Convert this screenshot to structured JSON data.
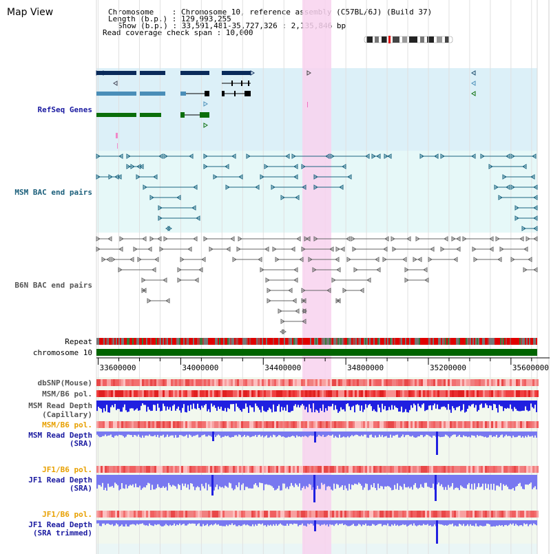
{
  "page": {
    "title": "Map View"
  },
  "info": {
    "chromosome": "Chromosome    : Chromosome 10, reference assembly (C57BL/6J) (Build 37)",
    "length": "Length (b.p.) : 129,993,255",
    "show": "Show (b.p.) : 33,591,481-35,727,326 : 2,135,846 bp",
    "coverage": "Read coverage check span : 10,000"
  },
  "tracks": {
    "refseq": "RefSeq Genes",
    "msm_bac": "MSM BAC end pairs",
    "b6n_bac": "B6N BAC end pairs",
    "repeat": "Repeat",
    "chromosome": "chromosome 10",
    "dbsnp": "dbSNP(Mouse)",
    "msm_b6_pol_1": "MSM/B6 pol.",
    "msm_depth_cap_1": "MSM Read Depth",
    "msm_depth_cap_2": "(Capillary)",
    "msm_b6_pol_2": "MSM/B6 pol.",
    "msm_depth_sra_1": "MSM Read Depth",
    "msm_depth_sra_2": "(SRA)",
    "jf1_b6_pol_1": "JF1/B6 pol.",
    "jf1_depth_sra_1": "JF1 Read Depth",
    "jf1_depth_sra_2": "(SRA)",
    "jf1_b6_pol_2": "JF1/B6 pol.",
    "jf1_depth_trim_1": "JF1 Read Depth",
    "jf1_depth_trim_2": "(SRA trimmed)"
  },
  "axis": {
    "ticks": [
      "33600000",
      "34000000",
      "34400000",
      "34800000",
      "35200000",
      "35600000"
    ],
    "range": [
      33591481,
      35727326
    ]
  },
  "colors": {
    "refseq_bg": "#dcf0f8",
    "bac_bg": "#e6f8f8",
    "highlight": "#f8d2ee",
    "chromosome_bar": "#006400",
    "navy_gene": "#0a2a5a",
    "light_gene": "#4a8eb8",
    "green_gene": "#0a6e0a",
    "bac_teal": "#1a6480",
    "bac_gray": "#666666",
    "depth_blue": "#2020e0",
    "depth_light": "#7878f0"
  }
}
